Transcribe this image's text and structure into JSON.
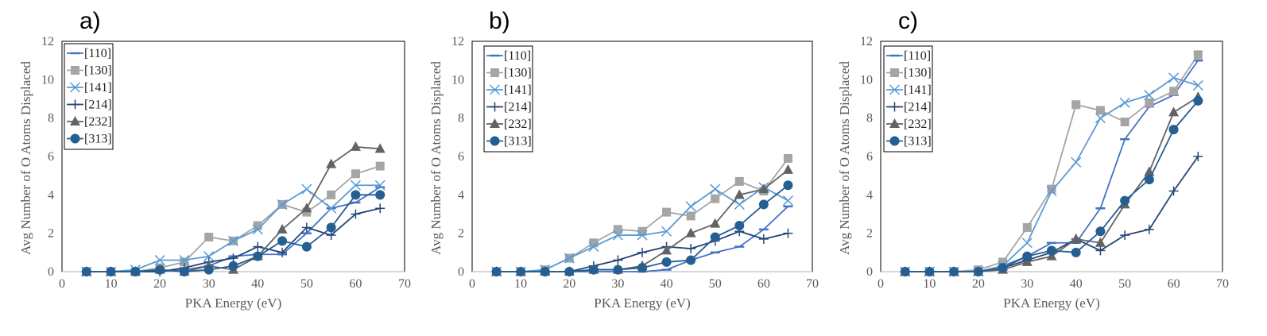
{
  "figure": {
    "panels": [
      "a)",
      "b)",
      "c)"
    ]
  },
  "style": {
    "series_colors": {
      "[110]": "#4472C4",
      "[130]": "#A5A5A5",
      "[141]": "#5B9BD5",
      "[214]": "#264478",
      "[232]": "#636363",
      "[313]": "#255E91"
    },
    "axis_color": "#BFBFBF",
    "text_color": "#595959"
  },
  "chart_data": [
    {
      "type": "line",
      "panel_label": "a)",
      "xlabel": "PKA Energy (eV)",
      "ylabel": "Avg Number of O Atoms Displaced",
      "xlim": [
        0,
        70
      ],
      "ylim": [
        0,
        12
      ],
      "xticks": [
        0,
        10,
        20,
        30,
        40,
        50,
        60,
        70
      ],
      "yticks": [
        0,
        2,
        4,
        6,
        8,
        10,
        12
      ],
      "grid": false,
      "legend": "top-left",
      "x": [
        5,
        10,
        15,
        20,
        25,
        30,
        35,
        40,
        45,
        50,
        55,
        60,
        65
      ],
      "series": [
        {
          "name": "[110]",
          "marker": "dash",
          "values": [
            0,
            0,
            0,
            0,
            0.1,
            0.3,
            0.8,
            0.9,
            0.9,
            2.0,
            3.3,
            3.6,
            4.4
          ]
        },
        {
          "name": "[130]",
          "marker": "square",
          "values": [
            0,
            0,
            0,
            0.2,
            0.5,
            1.8,
            1.6,
            2.4,
            3.5,
            3.1,
            4.0,
            5.1,
            5.5
          ]
        },
        {
          "name": "[141]",
          "marker": "x",
          "values": [
            0,
            0,
            0.1,
            0.6,
            0.6,
            0.8,
            1.6,
            2.2,
            3.5,
            4.3,
            3.3,
            4.5,
            4.5
          ]
        },
        {
          "name": "[214]",
          "marker": "plus",
          "values": [
            0,
            0,
            0,
            0,
            0.2,
            0.5,
            0.7,
            1.3,
            1.0,
            2.3,
            1.9,
            3.0,
            3.3
          ]
        },
        {
          "name": "[232]",
          "marker": "triangle",
          "values": [
            0,
            0,
            0,
            0.1,
            0,
            0.3,
            0.1,
            0.8,
            2.2,
            3.3,
            5.6,
            6.5,
            6.4
          ]
        },
        {
          "name": "[313]",
          "marker": "circle",
          "values": [
            0,
            0,
            0,
            0.1,
            0,
            0.1,
            0.3,
            0.8,
            1.6,
            1.3,
            2.3,
            4.0,
            4.0
          ]
        }
      ]
    },
    {
      "type": "line",
      "panel_label": "b)",
      "xlabel": "PKA Energy (eV)",
      "ylabel": "Avg Number of O Atoms Displaced",
      "xlim": [
        0,
        70
      ],
      "ylim": [
        0,
        12
      ],
      "xticks": [
        0,
        10,
        20,
        30,
        40,
        50,
        60,
        70
      ],
      "yticks": [
        0,
        2,
        4,
        6,
        8,
        10,
        12
      ],
      "grid": false,
      "legend": "top-left",
      "x": [
        5,
        10,
        15,
        20,
        25,
        30,
        35,
        40,
        45,
        50,
        55,
        60,
        65
      ],
      "series": [
        {
          "name": "[110]",
          "marker": "dash",
          "values": [
            0,
            0,
            0,
            0,
            0,
            0,
            0,
            0.1,
            0.6,
            1.0,
            1.3,
            2.2,
            3.4
          ]
        },
        {
          "name": "[130]",
          "marker": "square",
          "values": [
            0,
            0,
            0.1,
            0.7,
            1.5,
            2.2,
            2.1,
            3.1,
            2.9,
            3.8,
            4.7,
            4.2,
            5.9
          ]
        },
        {
          "name": "[141]",
          "marker": "x",
          "values": [
            0,
            0,
            0.1,
            0.7,
            1.3,
            1.9,
            1.9,
            2.1,
            3.4,
            4.3,
            3.5,
            4.4,
            3.7
          ]
        },
        {
          "name": "[214]",
          "marker": "plus",
          "values": [
            0,
            0,
            0,
            0,
            0.3,
            0.6,
            1.0,
            1.3,
            1.2,
            1.6,
            2.1,
            1.7,
            2.0
          ]
        },
        {
          "name": "[232]",
          "marker": "triangle",
          "values": [
            0,
            0,
            0,
            0,
            0.1,
            0.1,
            0.3,
            1.1,
            2.0,
            2.5,
            4.0,
            4.3,
            5.3
          ]
        },
        {
          "name": "[313]",
          "marker": "circle",
          "values": [
            0,
            0,
            0,
            0,
            0.1,
            0.1,
            0.2,
            0.5,
            0.6,
            1.8,
            2.4,
            3.5,
            4.5
          ]
        }
      ]
    },
    {
      "type": "line",
      "panel_label": "c)",
      "xlabel": "PKA Energy (eV)",
      "ylabel": "Avg Number of O Atoms Displaced",
      "xlim": [
        0,
        70
      ],
      "ylim": [
        0,
        12
      ],
      "xticks": [
        0,
        10,
        20,
        30,
        40,
        50,
        60,
        70
      ],
      "yticks": [
        0,
        2,
        4,
        6,
        8,
        10,
        12
      ],
      "grid": false,
      "legend": "top-left",
      "x": [
        5,
        10,
        15,
        20,
        25,
        30,
        35,
        40,
        45,
        50,
        55,
        60,
        65
      ],
      "series": [
        {
          "name": "[110]",
          "marker": "dash",
          "values": [
            0,
            0,
            0,
            0,
            0.3,
            0.8,
            1.5,
            1.5,
            3.3,
            6.9,
            8.6,
            9.2,
            11.0
          ]
        },
        {
          "name": "[130]",
          "marker": "square",
          "values": [
            0,
            0,
            0,
            0.1,
            0.5,
            2.3,
            4.3,
            8.7,
            8.4,
            7.8,
            8.8,
            9.4,
            11.3
          ]
        },
        {
          "name": "[141]",
          "marker": "x",
          "values": [
            0,
            0,
            0,
            0,
            0.3,
            1.5,
            4.2,
            5.7,
            8.0,
            8.8,
            9.2,
            10.1,
            9.7
          ]
        },
        {
          "name": "[214]",
          "marker": "plus",
          "values": [
            0,
            0,
            0,
            0,
            0.2,
            0.6,
            1.0,
            1.7,
            1.1,
            1.9,
            2.2,
            4.2,
            6.0
          ]
        },
        {
          "name": "[232]",
          "marker": "triangle",
          "values": [
            0,
            0,
            0,
            0,
            0.1,
            0.5,
            0.8,
            1.7,
            1.5,
            3.5,
            5.2,
            8.3,
            9.1
          ]
        },
        {
          "name": "[313]",
          "marker": "circle",
          "values": [
            0,
            0,
            0,
            0,
            0.2,
            0.8,
            1.1,
            1.0,
            2.1,
            3.7,
            4.8,
            7.4,
            8.9
          ]
        }
      ]
    }
  ]
}
